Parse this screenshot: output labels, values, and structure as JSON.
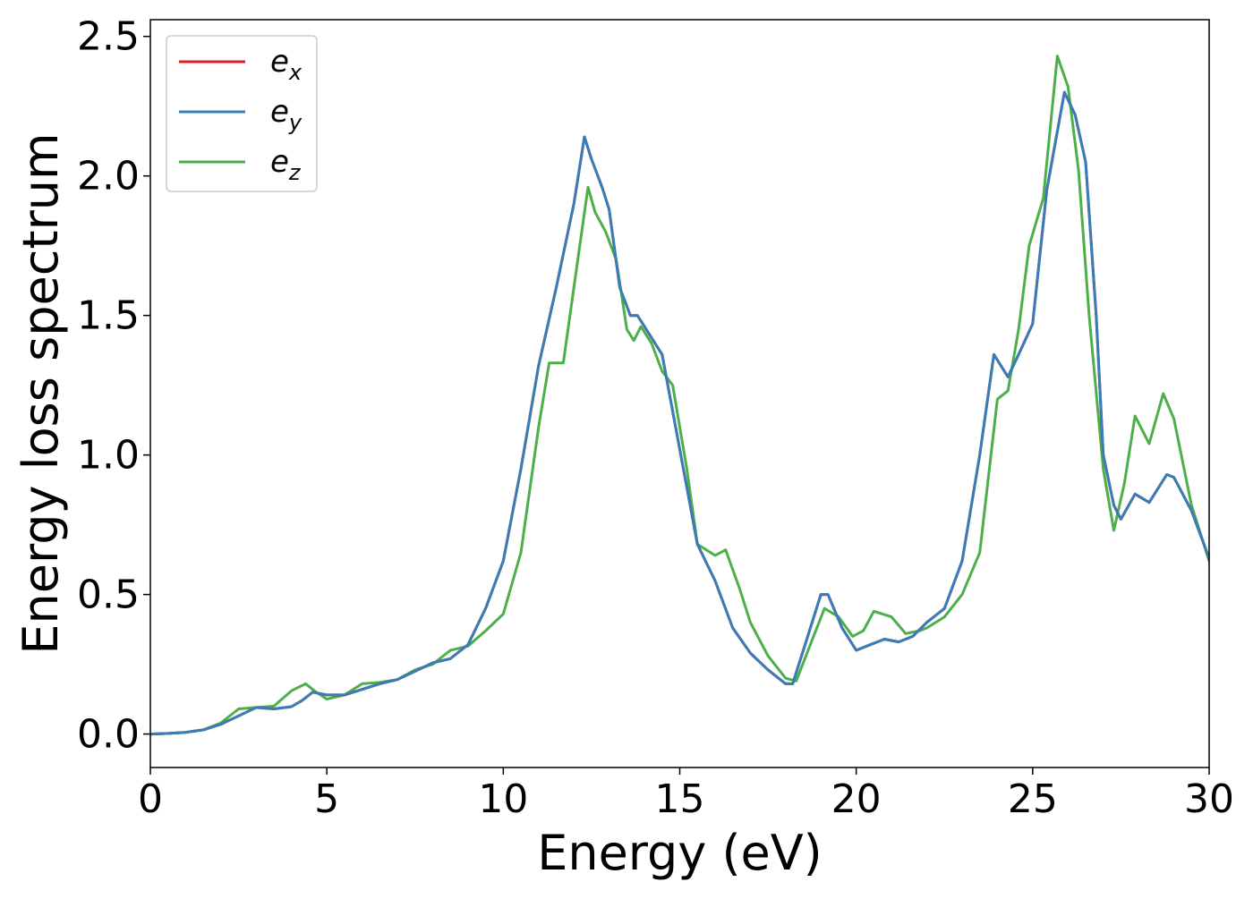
{
  "chart_data": {
    "type": "line",
    "title": "",
    "xlabel": "Energy (eV)",
    "ylabel": "Energy loss spectrum",
    "xlim": [
      0,
      30
    ],
    "ylim": [
      -0.12,
      2.56
    ],
    "xticks": [
      0,
      5,
      10,
      15,
      20,
      25,
      30
    ],
    "xtick_labels": [
      "0",
      "5",
      "10",
      "15",
      "20",
      "25",
      "30"
    ],
    "yticks": [
      0.0,
      0.5,
      1.0,
      1.5,
      2.0,
      2.5
    ],
    "ytick_labels": [
      "0.0",
      "0.5",
      "1.0",
      "1.5",
      "2.0",
      "2.5"
    ],
    "grid": false,
    "legend_position": "top-left",
    "series": [
      {
        "name": "e_x",
        "legend_base": "e",
        "legend_sub": "x",
        "color": "#e41a1c",
        "points": [
          [
            0,
            0.0
          ],
          [
            0.5,
            0.002
          ],
          [
            1.0,
            0.006
          ],
          [
            1.5,
            0.015
          ],
          [
            2.0,
            0.035
          ],
          [
            2.5,
            0.065
          ],
          [
            3.0,
            0.095
          ],
          [
            3.5,
            0.09
          ],
          [
            4.0,
            0.098
          ],
          [
            4.3,
            0.12
          ],
          [
            4.6,
            0.15
          ],
          [
            5.0,
            0.14
          ],
          [
            5.5,
            0.14
          ],
          [
            6.0,
            0.16
          ],
          [
            6.5,
            0.18
          ],
          [
            7.0,
            0.195
          ],
          [
            7.5,
            0.225
          ],
          [
            8.0,
            0.255
          ],
          [
            8.5,
            0.27
          ],
          [
            9.0,
            0.32
          ],
          [
            9.5,
            0.45
          ],
          [
            10.0,
            0.62
          ],
          [
            10.5,
            0.95
          ],
          [
            11.0,
            1.32
          ],
          [
            11.5,
            1.6
          ],
          [
            12.0,
            1.9
          ],
          [
            12.3,
            2.14
          ],
          [
            12.5,
            2.06
          ],
          [
            12.8,
            1.96
          ],
          [
            13.0,
            1.88
          ],
          [
            13.3,
            1.6
          ],
          [
            13.6,
            1.5
          ],
          [
            13.8,
            1.5
          ],
          [
            14.0,
            1.46
          ],
          [
            14.5,
            1.36
          ],
          [
            15.0,
            1.02
          ],
          [
            15.5,
            0.68
          ],
          [
            16.0,
            0.55
          ],
          [
            16.5,
            0.38
          ],
          [
            17.0,
            0.29
          ],
          [
            17.5,
            0.23
          ],
          [
            18.0,
            0.18
          ],
          [
            18.2,
            0.18
          ],
          [
            18.6,
            0.34
          ],
          [
            19.0,
            0.5
          ],
          [
            19.2,
            0.5
          ],
          [
            19.6,
            0.38
          ],
          [
            20.0,
            0.3
          ],
          [
            20.4,
            0.32
          ],
          [
            20.8,
            0.34
          ],
          [
            21.2,
            0.33
          ],
          [
            21.6,
            0.35
          ],
          [
            22.0,
            0.4
          ],
          [
            22.5,
            0.45
          ],
          [
            23.0,
            0.62
          ],
          [
            23.5,
            1.0
          ],
          [
            23.9,
            1.36
          ],
          [
            24.3,
            1.28
          ],
          [
            24.6,
            1.36
          ],
          [
            25.0,
            1.47
          ],
          [
            25.4,
            1.95
          ],
          [
            25.9,
            2.3
          ],
          [
            26.2,
            2.22
          ],
          [
            26.5,
            2.05
          ],
          [
            26.8,
            1.5
          ],
          [
            27.0,
            1.0
          ],
          [
            27.3,
            0.82
          ],
          [
            27.5,
            0.77
          ],
          [
            27.9,
            0.86
          ],
          [
            28.3,
            0.83
          ],
          [
            28.8,
            0.93
          ],
          [
            29.0,
            0.92
          ],
          [
            29.5,
            0.8
          ],
          [
            30.0,
            0.63
          ]
        ]
      },
      {
        "name": "e_y",
        "legend_base": "e",
        "legend_sub": "y",
        "color": "#377eb8",
        "points": [
          [
            0,
            0.0
          ],
          [
            0.5,
            0.002
          ],
          [
            1.0,
            0.006
          ],
          [
            1.5,
            0.015
          ],
          [
            2.0,
            0.035
          ],
          [
            2.5,
            0.065
          ],
          [
            3.0,
            0.095
          ],
          [
            3.5,
            0.09
          ],
          [
            4.0,
            0.098
          ],
          [
            4.3,
            0.12
          ],
          [
            4.6,
            0.15
          ],
          [
            5.0,
            0.14
          ],
          [
            5.5,
            0.14
          ],
          [
            6.0,
            0.16
          ],
          [
            6.5,
            0.18
          ],
          [
            7.0,
            0.195
          ],
          [
            7.5,
            0.225
          ],
          [
            8.0,
            0.255
          ],
          [
            8.5,
            0.27
          ],
          [
            9.0,
            0.32
          ],
          [
            9.5,
            0.45
          ],
          [
            10.0,
            0.62
          ],
          [
            10.5,
            0.95
          ],
          [
            11.0,
            1.32
          ],
          [
            11.5,
            1.6
          ],
          [
            12.0,
            1.9
          ],
          [
            12.3,
            2.14
          ],
          [
            12.5,
            2.06
          ],
          [
            12.8,
            1.96
          ],
          [
            13.0,
            1.88
          ],
          [
            13.3,
            1.6
          ],
          [
            13.6,
            1.5
          ],
          [
            13.8,
            1.5
          ],
          [
            14.0,
            1.46
          ],
          [
            14.5,
            1.36
          ],
          [
            15.0,
            1.02
          ],
          [
            15.5,
            0.68
          ],
          [
            16.0,
            0.55
          ],
          [
            16.5,
            0.38
          ],
          [
            17.0,
            0.29
          ],
          [
            17.5,
            0.23
          ],
          [
            18.0,
            0.18
          ],
          [
            18.2,
            0.18
          ],
          [
            18.6,
            0.34
          ],
          [
            19.0,
            0.5
          ],
          [
            19.2,
            0.5
          ],
          [
            19.6,
            0.38
          ],
          [
            20.0,
            0.3
          ],
          [
            20.4,
            0.32
          ],
          [
            20.8,
            0.34
          ],
          [
            21.2,
            0.33
          ],
          [
            21.6,
            0.35
          ],
          [
            22.0,
            0.4
          ],
          [
            22.5,
            0.45
          ],
          [
            23.0,
            0.62
          ],
          [
            23.5,
            1.0
          ],
          [
            23.9,
            1.36
          ],
          [
            24.3,
            1.28
          ],
          [
            24.6,
            1.36
          ],
          [
            25.0,
            1.47
          ],
          [
            25.4,
            1.95
          ],
          [
            25.9,
            2.3
          ],
          [
            26.2,
            2.22
          ],
          [
            26.5,
            2.05
          ],
          [
            26.8,
            1.5
          ],
          [
            27.0,
            1.0
          ],
          [
            27.3,
            0.82
          ],
          [
            27.5,
            0.77
          ],
          [
            27.9,
            0.86
          ],
          [
            28.3,
            0.83
          ],
          [
            28.8,
            0.93
          ],
          [
            29.0,
            0.92
          ],
          [
            29.5,
            0.8
          ],
          [
            30.0,
            0.63
          ]
        ]
      },
      {
        "name": "e_z",
        "legend_base": "e",
        "legend_sub": "z",
        "color": "#4daf4a",
        "points": [
          [
            0,
            0.0
          ],
          [
            0.5,
            0.002
          ],
          [
            1.0,
            0.006
          ],
          [
            1.5,
            0.015
          ],
          [
            2.0,
            0.04
          ],
          [
            2.5,
            0.09
          ],
          [
            3.0,
            0.095
          ],
          [
            3.5,
            0.1
          ],
          [
            4.0,
            0.155
          ],
          [
            4.4,
            0.18
          ],
          [
            4.7,
            0.15
          ],
          [
            5.0,
            0.125
          ],
          [
            5.5,
            0.14
          ],
          [
            6.0,
            0.18
          ],
          [
            6.5,
            0.185
          ],
          [
            7.0,
            0.195
          ],
          [
            7.5,
            0.23
          ],
          [
            8.0,
            0.25
          ],
          [
            8.5,
            0.3
          ],
          [
            9.0,
            0.315
          ],
          [
            9.5,
            0.37
          ],
          [
            10.0,
            0.43
          ],
          [
            10.5,
            0.65
          ],
          [
            11.0,
            1.1
          ],
          [
            11.3,
            1.33
          ],
          [
            11.7,
            1.33
          ],
          [
            12.0,
            1.6
          ],
          [
            12.4,
            1.96
          ],
          [
            12.6,
            1.87
          ],
          [
            12.9,
            1.8
          ],
          [
            13.2,
            1.7
          ],
          [
            13.5,
            1.45
          ],
          [
            13.7,
            1.41
          ],
          [
            13.9,
            1.46
          ],
          [
            14.2,
            1.4
          ],
          [
            14.5,
            1.3
          ],
          [
            14.8,
            1.25
          ],
          [
            15.2,
            0.95
          ],
          [
            15.5,
            0.68
          ],
          [
            16.0,
            0.64
          ],
          [
            16.3,
            0.66
          ],
          [
            16.7,
            0.52
          ],
          [
            17.0,
            0.4
          ],
          [
            17.5,
            0.28
          ],
          [
            18.0,
            0.2
          ],
          [
            18.3,
            0.19
          ],
          [
            18.7,
            0.32
          ],
          [
            19.1,
            0.45
          ],
          [
            19.5,
            0.42
          ],
          [
            19.9,
            0.35
          ],
          [
            20.2,
            0.37
          ],
          [
            20.5,
            0.44
          ],
          [
            21.0,
            0.42
          ],
          [
            21.4,
            0.36
          ],
          [
            21.8,
            0.37
          ],
          [
            22.0,
            0.38
          ],
          [
            22.5,
            0.42
          ],
          [
            23.0,
            0.5
          ],
          [
            23.5,
            0.65
          ],
          [
            24.0,
            1.2
          ],
          [
            24.3,
            1.23
          ],
          [
            24.6,
            1.45
          ],
          [
            24.9,
            1.75
          ],
          [
            25.3,
            1.92
          ],
          [
            25.7,
            2.43
          ],
          [
            26.0,
            2.32
          ],
          [
            26.3,
            2.02
          ],
          [
            26.6,
            1.5
          ],
          [
            27.0,
            0.95
          ],
          [
            27.3,
            0.73
          ],
          [
            27.6,
            0.9
          ],
          [
            27.9,
            1.14
          ],
          [
            28.3,
            1.04
          ],
          [
            28.7,
            1.22
          ],
          [
            29.0,
            1.13
          ],
          [
            29.5,
            0.82
          ],
          [
            30.0,
            0.62
          ]
        ]
      }
    ]
  }
}
